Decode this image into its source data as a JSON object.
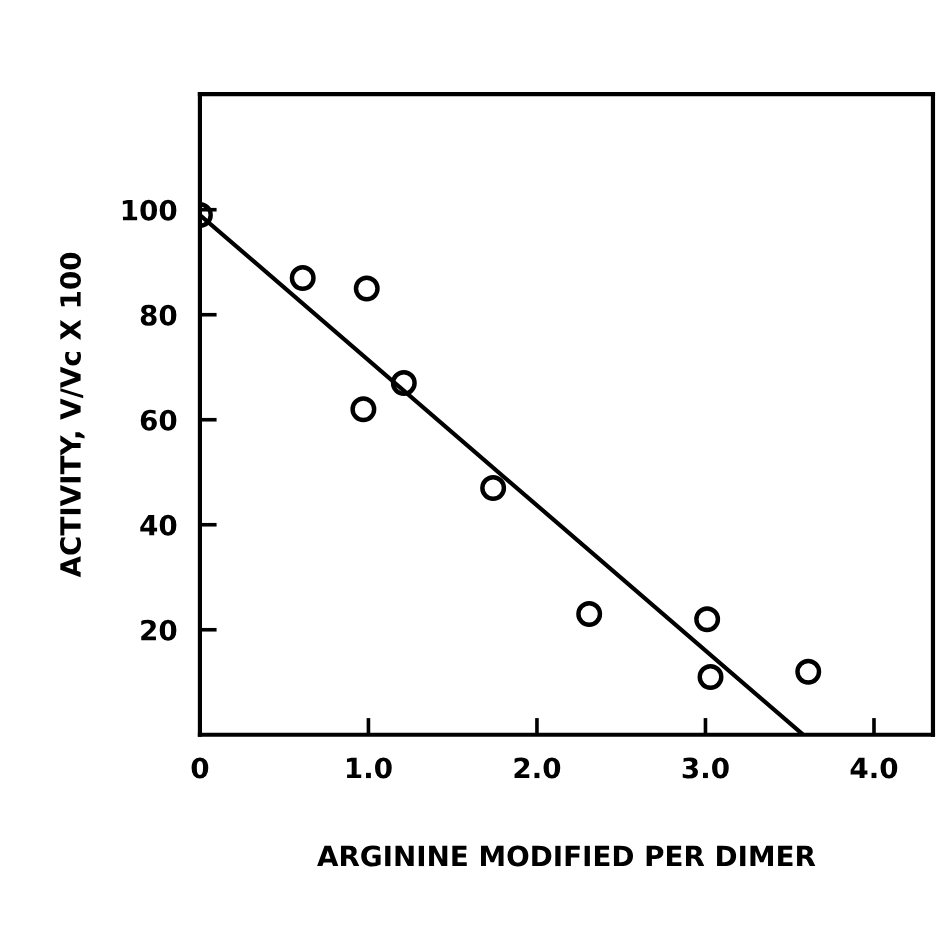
{
  "chart_data": {
    "type": "scatter",
    "xlabel": "ARGININE MODIFIED PER DIMER",
    "ylabel": "ACTIVITY, V/Vc X 100",
    "series": [
      {
        "color": "#000000",
        "marker": "circle",
        "x": [
          0,
          0.61,
          0.99,
          0.97,
          1.21,
          1.74,
          2.31,
          3.01,
          3.03,
          3.61
        ],
        "values": [
          99,
          87,
          85,
          62,
          67,
          47,
          23,
          22,
          11,
          12
        ]
      },
      {
        "type": "line",
        "color": "#000000",
        "line_style": "solid",
        "x": [
          0,
          3.58
        ],
        "values": [
          99,
          0
        ]
      }
    ],
    "xlim": [
      0,
      4.35
    ],
    "ylim": [
      0,
      122
    ],
    "xticks": [
      {
        "value": 0,
        "label": "0"
      },
      {
        "value": 1,
        "label": "1.0"
      },
      {
        "value": 2,
        "label": "2.0"
      },
      {
        "value": 3,
        "label": "3.0"
      },
      {
        "value": 4,
        "label": "4.0"
      }
    ],
    "yticks": [
      20,
      40,
      60,
      80,
      100
    ],
    "grid": false,
    "legend": false
  }
}
